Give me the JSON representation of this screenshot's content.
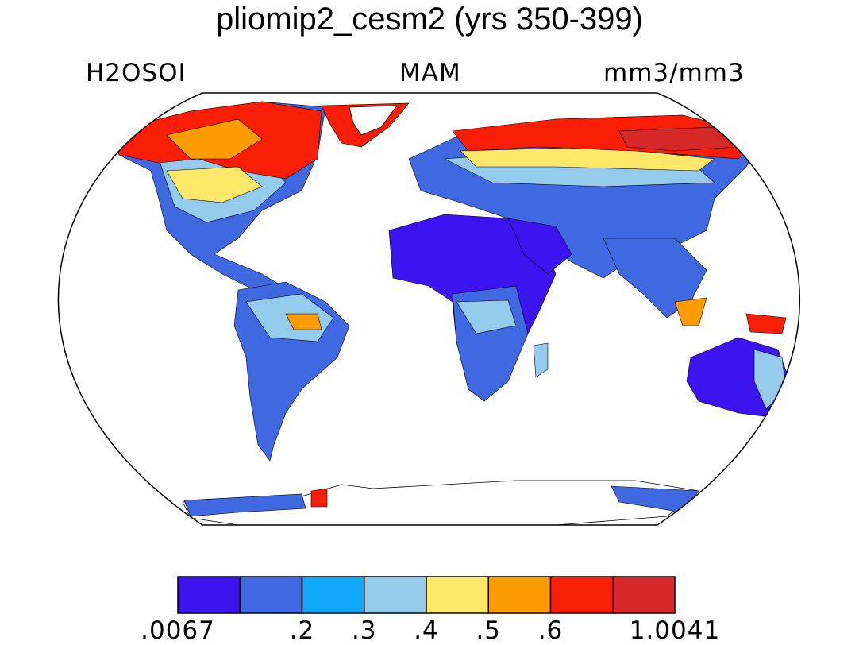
{
  "title": "pliomip2_cesm2 (yrs 350-399)",
  "variable": "H2OSOI",
  "season": "MAM",
  "units": "mm3/mm3",
  "colorbar": {
    "colors": [
      "#3b14f0",
      "#4068e0",
      "#10a8f8",
      "#94cbed",
      "#fde869",
      "#fd9c00",
      "#fb1e07",
      "#d62828"
    ],
    "tick_labels": [
      ".0067",
      ".2",
      ".3",
      ".4",
      ".5",
      ".6",
      "1.0041"
    ]
  },
  "map_colors": {
    "land": "#ffffff",
    "coast": "#000000",
    "dry": "#3b14f0",
    "moderate": "#4068e0",
    "medium": "#10a8f8",
    "light": "#94cbed",
    "mid": "#fde869",
    "wet": "#fd9c00",
    "verywet": "#fb1e07",
    "saturated": "#d62828"
  }
}
